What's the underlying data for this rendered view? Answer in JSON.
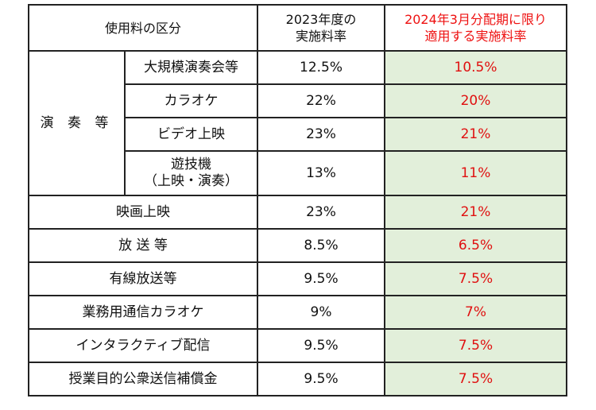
{
  "header": {
    "category": "使用料の区分",
    "rate_2023_line1": "2023年度の",
    "rate_2023_line2": "実施料率",
    "rate_2024_line1": "2024年3月分配期に限り",
    "rate_2024_line2": "適用する実施料率"
  },
  "group_performance": "演 奏 等",
  "rows": [
    {
      "label": "大規模演奏会等",
      "rate_2023": "12.5%",
      "rate_2024_value": "10.5",
      "rate_2024_unit": "%"
    },
    {
      "label": "カラオケ",
      "rate_2023": "22%",
      "rate_2024_value": "20",
      "rate_2024_unit": "%"
    },
    {
      "label": "ビデオ上映",
      "rate_2023": "23%",
      "rate_2024_value": "21",
      "rate_2024_unit": "%"
    },
    {
      "label_line1": "遊技機",
      "label_line2": "（上映・演奏）",
      "rate_2023": "13%",
      "rate_2024_value": "11",
      "rate_2024_unit": "%"
    },
    {
      "label": "映画上映",
      "rate_2023": "23%",
      "rate_2024_value": "21",
      "rate_2024_unit": "%"
    },
    {
      "label": "放 送 等",
      "rate_2023": "8.5%",
      "rate_2024_value": "6.5",
      "rate_2024_unit": "%"
    },
    {
      "label": "有線放送等",
      "rate_2023": "9.5%",
      "rate_2024_value": "7.5",
      "rate_2024_unit": "%"
    },
    {
      "label": "業務用通信カラオケ",
      "rate_2023": "9%",
      "rate_2024_value": "7",
      "rate_2024_unit": "%"
    },
    {
      "label": "インタラクティブ配信",
      "rate_2023": "9.5%",
      "rate_2024_value": "7.5",
      "rate_2024_unit": "%"
    },
    {
      "label": "授業目的公衆送信補償金",
      "rate_2023": "9.5%",
      "rate_2024_value": "7.5",
      "rate_2024_unit": "%"
    }
  ],
  "colors": {
    "highlight_text": "#e01010",
    "highlight_background": "#e2efda",
    "border": "#222222"
  }
}
